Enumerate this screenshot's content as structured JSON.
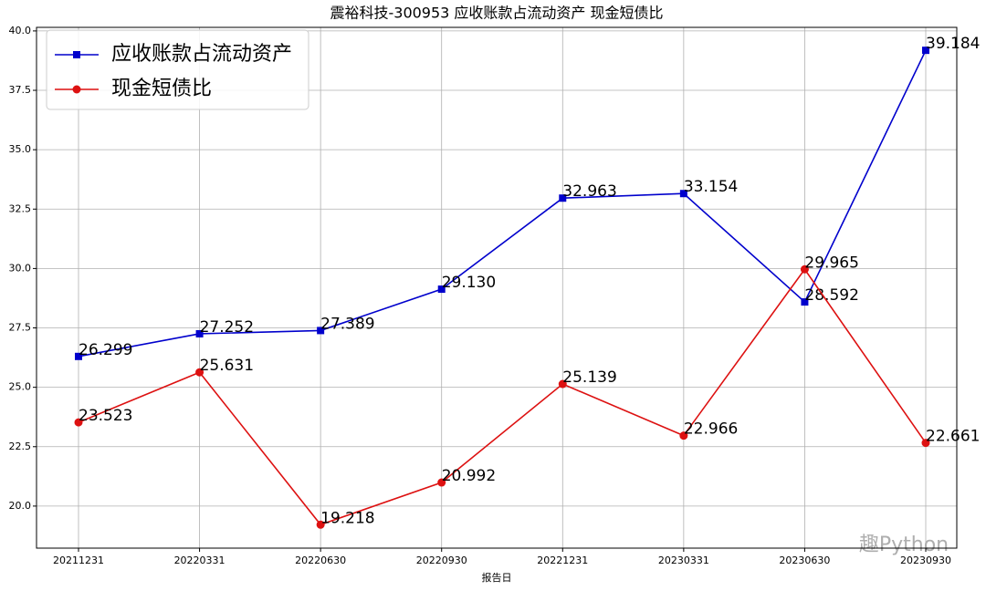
{
  "chart_data": {
    "type": "line",
    "title": "震裕科技-300953 应收账款占流动资产 现金短债比",
    "x_label": "报告日",
    "categories": [
      "20211231",
      "20220331",
      "20220630",
      "20220930",
      "20221231",
      "20230331",
      "20230630",
      "20230930"
    ],
    "series": [
      {
        "name": "应收账款占流动资产",
        "color": "#0000cc",
        "marker": "square",
        "values": [
          26.299,
          27.252,
          27.389,
          29.13,
          32.963,
          33.154,
          28.592,
          39.184
        ],
        "value_labels": [
          "26.299",
          "27.252",
          "27.389",
          "29.130",
          "32.963",
          "33.154",
          "28.592",
          "39.184"
        ]
      },
      {
        "name": "现金短债比",
        "color": "#dd1111",
        "marker": "circle",
        "values": [
          23.523,
          25.631,
          19.218,
          20.992,
          25.139,
          22.966,
          29.965,
          22.661
        ],
        "value_labels": [
          "23.523",
          "25.631",
          "19.218",
          "20.992",
          "25.139",
          "22.966",
          "29.965",
          "22.661"
        ]
      }
    ],
    "ylim": [
      18.23,
      40.15
    ],
    "yticks": [
      {
        "value": 20,
        "label": "20.0"
      },
      22.5,
      {
        "value": 25,
        "label": "25.0"
      },
      27.5,
      {
        "value": 30,
        "label": "30.0"
      },
      32.5,
      {
        "value": 35,
        "label": "35.0"
      },
      37.5,
      {
        "value": 40,
        "label": "40.0"
      }
    ],
    "grid": true,
    "legend_position": "upper left",
    "watermark": "趣Python"
  }
}
